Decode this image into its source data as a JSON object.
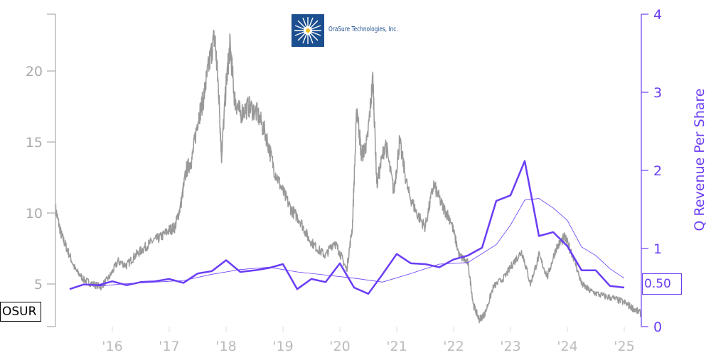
{
  "chart_data": {
    "type": "line",
    "company": "OraSure Technologies, Inc.",
    "ticker": "OSUR",
    "x_tick_labels": [
      "'16",
      "'17",
      "'18",
      "'19",
      "'20",
      "'21",
      "'22",
      "'23",
      "'24",
      "'25"
    ],
    "left_axis": {
      "ticks": [
        5,
        10,
        15,
        20
      ],
      "ylim": [
        2,
        24
      ]
    },
    "right_axis": {
      "label": "Q Revenue Per Share",
      "ticks": [
        0,
        1,
        2,
        3,
        4
      ],
      "ylim": [
        0,
        4
      ]
    },
    "last_value_label": "0.50",
    "colors": {
      "price": "#999999",
      "revenue": "#6a3df5",
      "axis_gray": "#aaaaaa"
    },
    "series": [
      {
        "key": "price",
        "axis": "left",
        "points": [
          [
            2015.0,
            10.3
          ],
          [
            2015.1,
            8.5
          ],
          [
            2015.2,
            7.5
          ],
          [
            2015.35,
            6.0
          ],
          [
            2015.5,
            5.3
          ],
          [
            2015.65,
            5.0
          ],
          [
            2015.8,
            4.8
          ],
          [
            2015.95,
            5.5
          ],
          [
            2016.1,
            6.6
          ],
          [
            2016.25,
            6.3
          ],
          [
            2016.4,
            7.0
          ],
          [
            2016.55,
            7.5
          ],
          [
            2016.7,
            8.0
          ],
          [
            2016.85,
            8.3
          ],
          [
            2017.0,
            8.8
          ],
          [
            2017.1,
            9.0
          ],
          [
            2017.2,
            10.5
          ],
          [
            2017.3,
            13.0
          ],
          [
            2017.4,
            13.8
          ],
          [
            2017.5,
            16.5
          ],
          [
            2017.6,
            18.0
          ],
          [
            2017.7,
            20.5
          ],
          [
            2017.8,
            22.5
          ],
          [
            2017.87,
            18.5
          ],
          [
            2017.92,
            14.0
          ],
          [
            2018.0,
            19.0
          ],
          [
            2018.07,
            21.8
          ],
          [
            2018.15,
            18.0
          ],
          [
            2018.25,
            17.0
          ],
          [
            2018.4,
            17.5
          ],
          [
            2018.55,
            17.0
          ],
          [
            2018.7,
            15.5
          ],
          [
            2018.85,
            13.0
          ],
          [
            2019.0,
            11.5
          ],
          [
            2019.15,
            10.2
          ],
          [
            2019.3,
            9.5
          ],
          [
            2019.45,
            8.2
          ],
          [
            2019.6,
            7.5
          ],
          [
            2019.75,
            7.0
          ],
          [
            2019.9,
            8.0
          ],
          [
            2020.0,
            7.2
          ],
          [
            2020.12,
            6.0
          ],
          [
            2020.22,
            9.0
          ],
          [
            2020.3,
            17.5
          ],
          [
            2020.38,
            14.0
          ],
          [
            2020.48,
            15.0
          ],
          [
            2020.58,
            19.5
          ],
          [
            2020.65,
            12.0
          ],
          [
            2020.8,
            15.0
          ],
          [
            2020.95,
            11.5
          ],
          [
            2021.05,
            15.0
          ],
          [
            2021.2,
            11.5
          ],
          [
            2021.35,
            10.0
          ],
          [
            2021.5,
            9.0
          ],
          [
            2021.65,
            12.0
          ],
          [
            2021.8,
            10.5
          ],
          [
            2021.95,
            9.5
          ],
          [
            2022.1,
            7.0
          ],
          [
            2022.25,
            6.5
          ],
          [
            2022.35,
            3.5
          ],
          [
            2022.45,
            2.5
          ],
          [
            2022.55,
            2.9
          ],
          [
            2022.7,
            4.8
          ],
          [
            2022.9,
            5.5
          ],
          [
            2023.05,
            6.5
          ],
          [
            2023.2,
            7.3
          ],
          [
            2023.35,
            5.0
          ],
          [
            2023.5,
            7.0
          ],
          [
            2023.65,
            5.5
          ],
          [
            2023.8,
            7.5
          ],
          [
            2023.95,
            8.3
          ],
          [
            2024.1,
            7.0
          ],
          [
            2024.25,
            5.0
          ],
          [
            2024.4,
            4.5
          ],
          [
            2024.6,
            4.2
          ],
          [
            2024.8,
            4.0
          ],
          [
            2025.0,
            3.7
          ],
          [
            2025.15,
            3.3
          ],
          [
            2025.3,
            2.9
          ]
        ]
      },
      {
        "key": "revenue",
        "axis": "right",
        "name": "Q Revenue Per Share",
        "points": [
          [
            2015.25,
            0.48
          ],
          [
            2015.5,
            0.54
          ],
          [
            2015.75,
            0.53
          ],
          [
            2016.0,
            0.58
          ],
          [
            2016.25,
            0.53
          ],
          [
            2016.5,
            0.57
          ],
          [
            2016.75,
            0.58
          ],
          [
            2017.0,
            0.61
          ],
          [
            2017.25,
            0.56
          ],
          [
            2017.5,
            0.68
          ],
          [
            2017.75,
            0.71
          ],
          [
            2018.0,
            0.85
          ],
          [
            2018.25,
            0.7
          ],
          [
            2018.5,
            0.72
          ],
          [
            2018.75,
            0.75
          ],
          [
            2019.0,
            0.8
          ],
          [
            2019.25,
            0.48
          ],
          [
            2019.5,
            0.61
          ],
          [
            2019.75,
            0.57
          ],
          [
            2020.0,
            0.81
          ],
          [
            2020.25,
            0.5
          ],
          [
            2020.5,
            0.42
          ],
          [
            2020.75,
            0.67
          ],
          [
            2021.0,
            0.93
          ],
          [
            2021.25,
            0.81
          ],
          [
            2021.5,
            0.8
          ],
          [
            2021.75,
            0.76
          ],
          [
            2022.0,
            0.86
          ],
          [
            2022.25,
            0.91
          ],
          [
            2022.5,
            1.01
          ],
          [
            2022.75,
            1.61
          ],
          [
            2023.0,
            1.68
          ],
          [
            2023.25,
            2.12
          ],
          [
            2023.5,
            1.16
          ],
          [
            2023.75,
            1.21
          ],
          [
            2024.0,
            1.03
          ],
          [
            2024.25,
            0.72
          ],
          [
            2024.5,
            0.72
          ],
          [
            2024.75,
            0.52
          ],
          [
            2025.0,
            0.5
          ]
        ]
      },
      {
        "key": "revenue_avg",
        "axis": "right",
        "points": [
          [
            2015.75,
            0.52
          ],
          [
            2016.25,
            0.55
          ],
          [
            2016.75,
            0.57
          ],
          [
            2017.25,
            0.59
          ],
          [
            2017.75,
            0.67
          ],
          [
            2018.25,
            0.73
          ],
          [
            2018.75,
            0.76
          ],
          [
            2019.25,
            0.7
          ],
          [
            2019.75,
            0.66
          ],
          [
            2020.25,
            0.62
          ],
          [
            2020.75,
            0.57
          ],
          [
            2021.25,
            0.68
          ],
          [
            2021.75,
            0.8
          ],
          [
            2022.25,
            0.82
          ],
          [
            2022.75,
            1.05
          ],
          [
            2023.0,
            1.3
          ],
          [
            2023.25,
            1.62
          ],
          [
            2023.5,
            1.64
          ],
          [
            2023.75,
            1.52
          ],
          [
            2024.0,
            1.36
          ],
          [
            2024.25,
            1.02
          ],
          [
            2024.5,
            0.91
          ],
          [
            2024.75,
            0.74
          ],
          [
            2025.0,
            0.62
          ]
        ]
      }
    ]
  }
}
